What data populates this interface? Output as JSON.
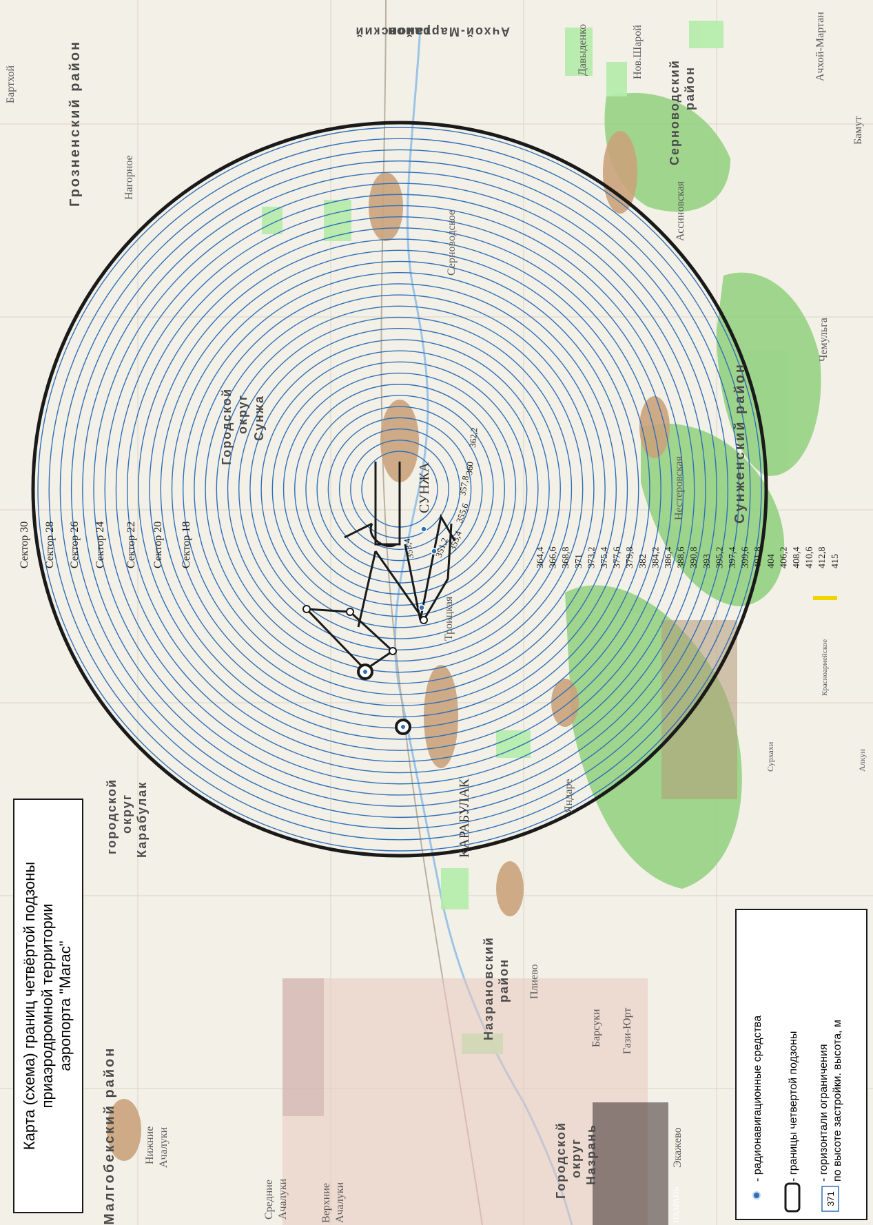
{
  "title": {
    "line1": "Карта (схема) границ четвёртой подзоны",
    "line2": "приаэродромной территории",
    "line3": "аэропорта \"Магас\""
  },
  "legend": {
    "navaids": "- радионавигационные средства",
    "boundary": "- границы четвертой подзоны",
    "contour_line1": "- горизонтали ограничения",
    "contour_line2": "по высоте застройки. высота, м",
    "contour_sample": "371"
  },
  "sectors": [
    "Сектор 30",
    "Сектор 28",
    "Сектор 26",
    "Сектор 24",
    "Сектор 22",
    "Сектор 20",
    "Сектор 18"
  ],
  "contour_heights_outer": [
    "364,4",
    "366,6",
    "368,8",
    "371",
    "373,2",
    "375,4",
    "377,6",
    "379,8",
    "382",
    "384,2",
    "386,4",
    "388,6",
    "390,8",
    "393",
    "395,2",
    "397,4",
    "399,6",
    "401,8",
    "404",
    "406,2",
    "408,4",
    "410,6",
    "412,8",
    "415"
  ],
  "contour_heights_inner": [
    "353,4",
    "351,2",
    "355,6",
    "357,8",
    "360",
    "362,2"
  ],
  "runway_height": "353,4",
  "districts": {
    "malgobek": "Малгобекский район",
    "grozny": "Грозненский район",
    "achkhoy": [
      "Ачхой-Мартановский",
      "район"
    ],
    "sernovodsk": [
      "Серноводский",
      "район"
    ],
    "sunzha_gorod": [
      "Городской",
      "округ",
      "Сунжа"
    ],
    "karabulak_gorod": [
      "городской",
      "округ",
      "Карабулак"
    ],
    "nazran_r": [
      "Назрановский",
      "район"
    ],
    "nazran_g": [
      "Городской",
      "округ",
      "Назрань"
    ],
    "sunzhensky": "Сунженский район"
  },
  "settlements": {
    "bartkhoy": "Бартхой",
    "nagornoe": "Нагорное",
    "sernovodskoe": "Серноводское",
    "assinovskaya": "Ассиновская",
    "davydenko": "Давыденко",
    "nov_sharoy": "Нов.Шарой",
    "achkhoy_martan": "Ачхой-Мартан",
    "bamut": "Бамут",
    "chemulga": "Чемульга",
    "nesterovskaya": "Нестеровская",
    "sunzha": "СУНЖА",
    "troitskaya": "Троицкая",
    "karabulak": "КАРАБУЛАК",
    "yandare": "Яндаре",
    "plievo": "Плиево",
    "gazi_yurt": "Гази-Юрт",
    "barsuki": "Барсуки",
    "ekazhevo": "Экажево",
    "nizhnie_achaluki": [
      "Нижние",
      "Ачалуки"
    ],
    "srednie_achaluki": [
      "Средние",
      "Ачалуки"
    ],
    "verkhnie_achaluki": [
      "Верхние",
      "Ачалуки"
    ],
    "nazran": "НАЗРАНЬ",
    "surkhakhi": "Сурхахи",
    "alkun": "Алкун",
    "krasnoarmeyskoe": "Красноармейское"
  },
  "colors": {
    "contour": "#2f6fb8",
    "boundary": "#1a1a1a",
    "forest": "#8cd07a",
    "field": "#a6e89a",
    "built": "#c7a27a",
    "background": "#f2efe6"
  }
}
